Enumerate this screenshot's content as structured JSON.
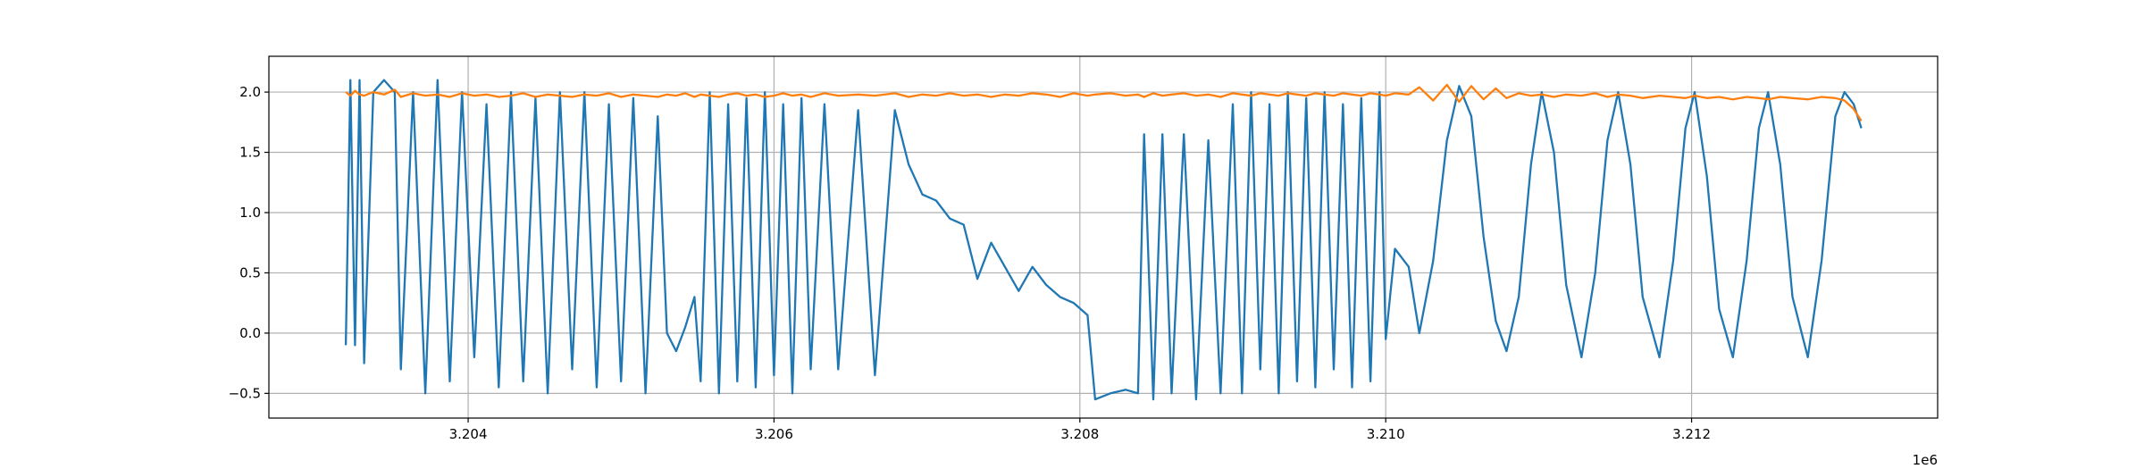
{
  "chart_data": {
    "type": "line",
    "x": [
      3203200,
      3203230,
      3203260,
      3203290,
      3203320,
      3203380,
      3203450,
      3203520,
      3203560,
      3203640,
      3203720,
      3203800,
      3203880,
      3203960,
      3204040,
      3204120,
      3204200,
      3204280,
      3204360,
      3204440,
      3204520,
      3204600,
      3204680,
      3204760,
      3204840,
      3204920,
      3205000,
      3205080,
      3205160,
      3205240,
      3205300,
      3205360,
      3205420,
      3205480,
      3205520,
      3205580,
      3205640,
      3205700,
      3205760,
      3205820,
      3205880,
      3205940,
      3206000,
      3206060,
      3206120,
      3206180,
      3206240,
      3206330,
      3206420,
      3206550,
      3206660,
      3206790,
      3206880,
      3206970,
      3207060,
      3207150,
      3207240,
      3207330,
      3207420,
      3207510,
      3207600,
      3207690,
      3207780,
      3207870,
      3207960,
      3208050,
      3208100,
      3208200,
      3208300,
      3208380,
      3208420,
      3208480,
      3208540,
      3208600,
      3208680,
      3208760,
      3208840,
      3208920,
      3209000,
      3209060,
      3209120,
      3209180,
      3209240,
      3209300,
      3209360,
      3209420,
      3209480,
      3209540,
      3209600,
      3209660,
      3209720,
      3209780,
      3209840,
      3209900,
      3209960,
      3210000,
      3210060,
      3210150,
      3210220,
      3210310,
      3210400,
      3210480,
      3210560,
      3210640,
      3210720,
      3210790,
      3210870,
      3210950,
      3211020,
      3211100,
      3211180,
      3211280,
      3211370,
      3211450,
      3211520,
      3211600,
      3211680,
      3211790,
      3211880,
      3211960,
      3212020,
      3212100,
      3212180,
      3212270,
      3212360,
      3212440,
      3212500,
      3212580,
      3212660,
      3212760,
      3212850,
      3212940,
      3213000,
      3213060,
      3213110
    ],
    "series": [
      {
        "color": "#1f77b4",
        "values": [
          -0.1,
          2.1,
          -0.1,
          2.1,
          -0.25,
          2.0,
          2.1,
          2.0,
          -0.3,
          2.0,
          -0.5,
          2.1,
          -0.4,
          2.0,
          -0.2,
          1.9,
          -0.45,
          2.0,
          -0.4,
          1.95,
          -0.5,
          2.0,
          -0.3,
          2.0,
          -0.45,
          1.9,
          -0.4,
          1.95,
          -0.5,
          1.8,
          0.0,
          -0.15,
          0.05,
          0.3,
          -0.4,
          2.0,
          -0.5,
          1.9,
          -0.4,
          1.95,
          -0.45,
          2.0,
          -0.35,
          1.9,
          -0.5,
          1.95,
          -0.3,
          1.9,
          -0.3,
          1.85,
          -0.35,
          1.85,
          1.4,
          1.15,
          1.1,
          0.95,
          0.9,
          0.45,
          0.75,
          0.55,
          0.35,
          0.55,
          0.4,
          0.3,
          0.25,
          0.15,
          -0.55,
          -0.5,
          -0.47,
          -0.5,
          1.65,
          -0.55,
          1.65,
          -0.5,
          1.65,
          -0.55,
          1.6,
          -0.5,
          1.9,
          -0.5,
          2.0,
          -0.3,
          1.9,
          -0.5,
          2.0,
          -0.4,
          1.95,
          -0.45,
          2.0,
          -0.3,
          1.9,
          -0.45,
          1.95,
          -0.4,
          2.0,
          -0.05,
          0.7,
          0.55,
          0.0,
          0.6,
          1.6,
          2.05,
          1.8,
          0.8,
          0.1,
          -0.15,
          0.3,
          1.4,
          2.0,
          1.5,
          0.4,
          -0.2,
          0.5,
          1.6,
          2.0,
          1.4,
          0.3,
          -0.2,
          0.6,
          1.7,
          2.0,
          1.3,
          0.2,
          -0.2,
          0.6,
          1.7,
          2.0,
          1.4,
          0.3,
          -0.2,
          0.6,
          1.8,
          2.0,
          1.9,
          1.7
        ]
      },
      {
        "color": "#ff7f0e",
        "values": [
          2.0,
          1.97,
          2.01,
          1.98,
          1.97,
          2.0,
          1.98,
          2.02,
          1.96,
          1.99,
          1.97,
          1.98,
          1.96,
          1.99,
          1.97,
          1.98,
          1.96,
          1.97,
          1.99,
          1.96,
          1.98,
          1.97,
          1.96,
          1.98,
          1.97,
          1.99,
          1.96,
          1.98,
          1.97,
          1.96,
          1.98,
          1.97,
          1.99,
          1.96,
          1.98,
          1.97,
          1.96,
          1.98,
          1.99,
          1.97,
          1.98,
          1.96,
          1.97,
          1.99,
          1.97,
          1.98,
          1.96,
          1.99,
          1.97,
          1.98,
          1.97,
          1.99,
          1.96,
          1.98,
          1.97,
          1.99,
          1.97,
          1.98,
          1.96,
          1.98,
          1.97,
          1.99,
          1.98,
          1.96,
          1.99,
          1.97,
          1.98,
          1.99,
          1.97,
          1.98,
          1.96,
          1.99,
          1.97,
          1.98,
          1.99,
          1.97,
          1.98,
          1.96,
          1.99,
          1.98,
          1.97,
          1.99,
          1.98,
          1.97,
          1.99,
          1.98,
          1.97,
          1.99,
          1.98,
          1.97,
          1.99,
          1.98,
          1.97,
          1.99,
          1.98,
          1.97,
          1.99,
          1.98,
          2.04,
          1.93,
          2.06,
          1.92,
          2.05,
          1.94,
          2.03,
          1.95,
          1.99,
          1.97,
          1.98,
          1.96,
          1.98,
          1.97,
          1.99,
          1.96,
          1.98,
          1.97,
          1.95,
          1.97,
          1.96,
          1.95,
          1.97,
          1.95,
          1.96,
          1.94,
          1.96,
          1.95,
          1.94,
          1.96,
          1.95,
          1.94,
          1.96,
          1.95,
          1.93,
          1.86,
          1.76
        ]
      }
    ],
    "xlim": [
      3202697,
      3213609
    ],
    "ylim": [
      -0.705,
      2.297
    ],
    "xticks": [
      {
        "value": 3204000,
        "label": "3.204"
      },
      {
        "value": 3206000,
        "label": "3.206"
      },
      {
        "value": 3208000,
        "label": "3.208"
      },
      {
        "value": 3210000,
        "label": "3.210"
      },
      {
        "value": 3212000,
        "label": "3.212"
      }
    ],
    "yticks": [
      {
        "value": -0.5,
        "label": "−0.5"
      },
      {
        "value": 0,
        "label": "0.0"
      },
      {
        "value": 0.5,
        "label": "0.5"
      },
      {
        "value": 1,
        "label": "1.0"
      },
      {
        "value": 1.5,
        "label": "1.5"
      },
      {
        "value": 2,
        "label": "2.0"
      }
    ],
    "x_offset_label": "1e6",
    "grid": true
  }
}
